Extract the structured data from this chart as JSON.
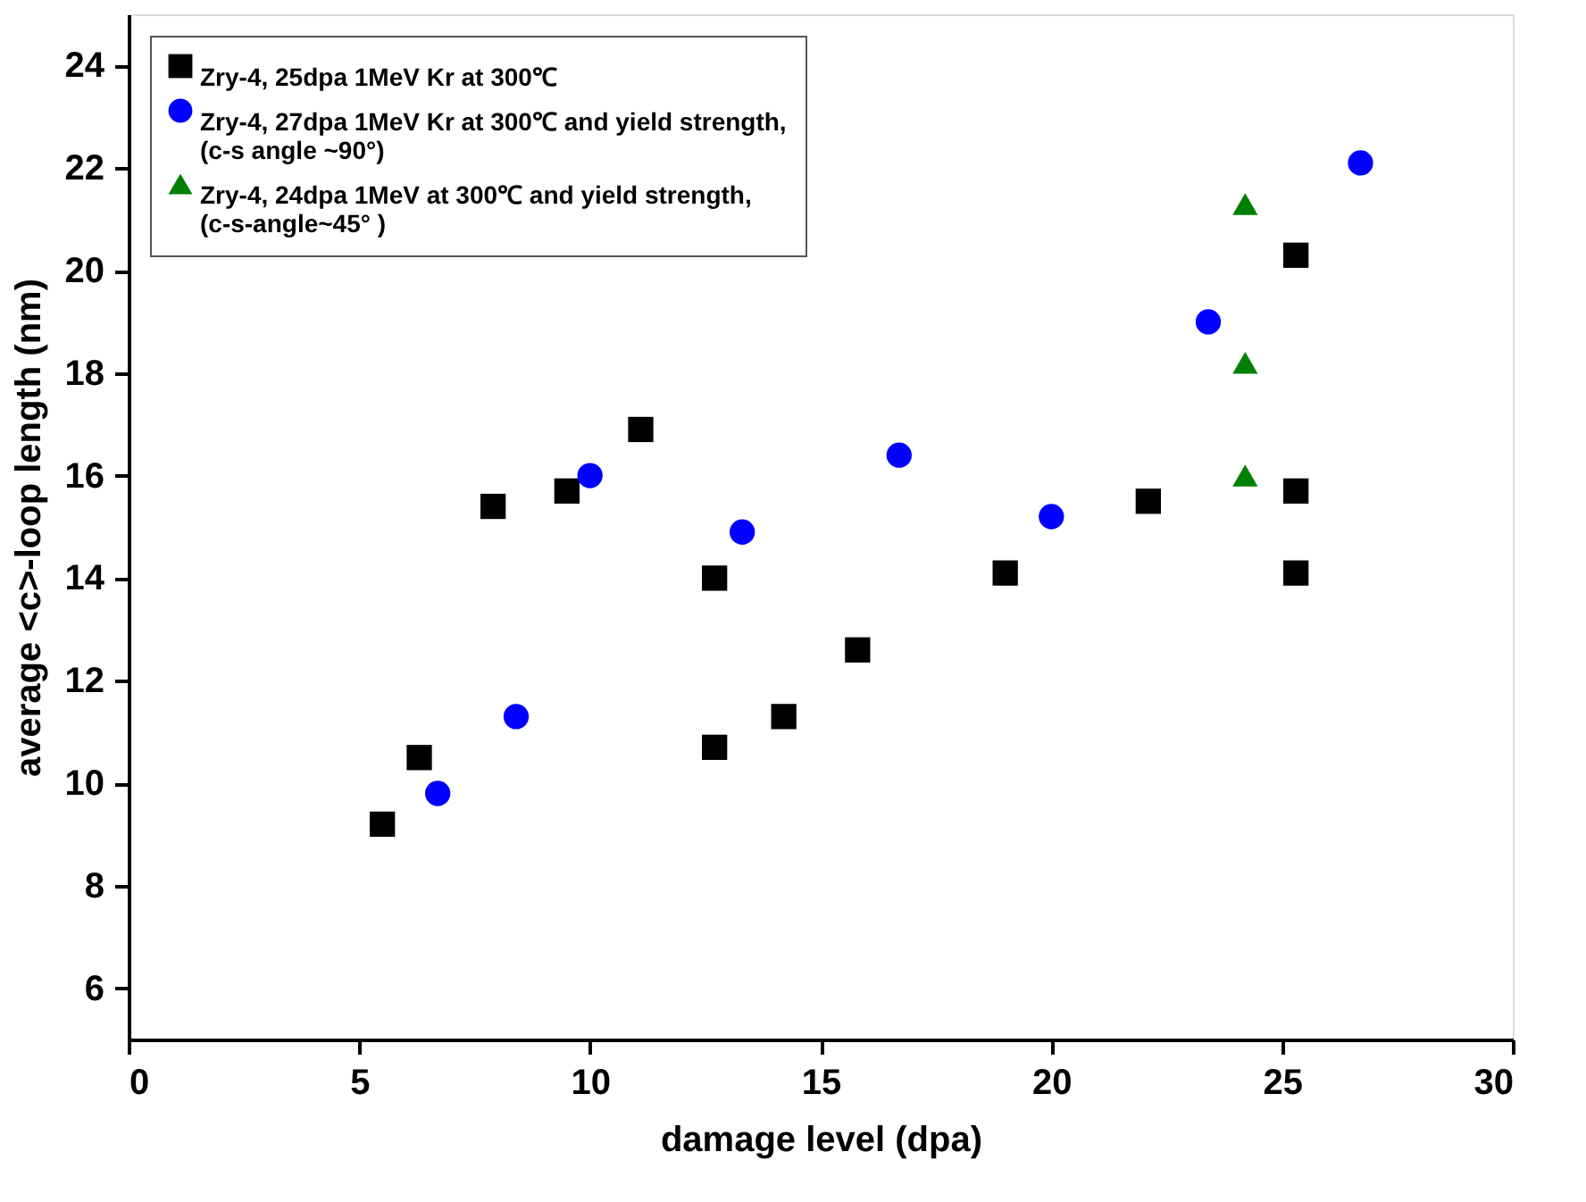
{
  "chart_data": {
    "type": "scatter",
    "xlabel": "damage level (dpa)",
    "ylabel": "average <c>-loop length (nm)",
    "xlim": [
      0,
      30
    ],
    "xticks": [
      0,
      5,
      10,
      15,
      20,
      25,
      30
    ],
    "ylim": [
      5,
      25
    ],
    "yticks": [
      6,
      8,
      10,
      12,
      14,
      16,
      18,
      20,
      22,
      24
    ],
    "grid": false,
    "legend": "top left",
    "series": [
      {
        "name": "Zry-4, 25dpa 1MeV Kr at 300℃",
        "color": "#000000",
        "marker": "square",
        "x": [
          5.5,
          6.3,
          7.9,
          9.5,
          11.1,
          12.7,
          12.7,
          14.2,
          15.8,
          19.0,
          22.1,
          25.3,
          25.3,
          25.3
        ],
        "values": [
          9.2,
          10.5,
          15.4,
          15.7,
          16.9,
          14.0,
          10.7,
          11.3,
          12.6,
          14.1,
          15.5,
          20.3,
          15.7,
          14.1
        ]
      },
      {
        "name": "Zry-4, 27dpa 1MeV Kr at 300℃ and yield strength,\n(c-s angle ~90°)",
        "color": "#0000ff",
        "marker": "circle",
        "x": [
          6.7,
          8.4,
          10.0,
          13.3,
          16.7,
          20.0,
          23.4,
          26.7
        ],
        "values": [
          9.8,
          11.3,
          16.0,
          14.9,
          16.4,
          15.2,
          19.0,
          22.1
        ]
      },
      {
        "name": "Zry-4, 24dpa 1MeV at 300℃ and yield strength,\n(c-s-angle~45°  )",
        "color": "#008000",
        "marker": "triangle",
        "x": [
          24.2,
          24.2,
          24.2
        ],
        "values": [
          21.3,
          18.2,
          16.0
        ]
      }
    ]
  }
}
